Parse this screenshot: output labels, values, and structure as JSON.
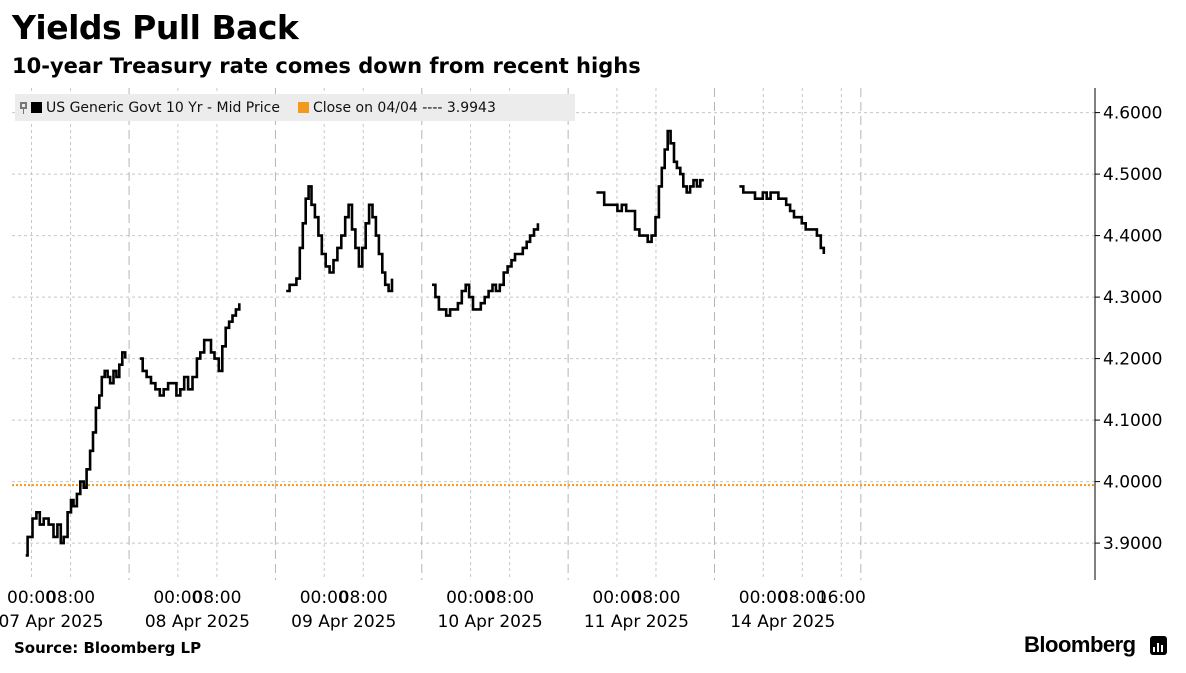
{
  "title": "Yields Pull Back",
  "subtitle": "10-year Treasury rate comes down from recent highs",
  "source": "Source: Bloomberg LP",
  "brand": "Bloomberg",
  "colors": {
    "series": "#000000",
    "reference": "#f39a1e",
    "grid": "#c8c8c8",
    "legend_bg": "#ececec"
  },
  "chart_data": {
    "type": "line",
    "title": "Yields Pull Back",
    "subtitle": "10-year Treasury rate comes down from recent highs",
    "ylabel": "",
    "xlabel": "",
    "ylim": [
      3.84,
      4.64
    ],
    "yticks": [
      3.9,
      4.0,
      4.1,
      4.2,
      4.3,
      4.4,
      4.5,
      4.6
    ],
    "ytick_labels": [
      "3.9000",
      "4.0000",
      "4.1000",
      "4.2000",
      "4.3000",
      "4.4000",
      "4.5000",
      "4.6000"
    ],
    "grid": true,
    "legend_position": "top-left",
    "legend": [
      {
        "name": "US Generic Govt 10 Yr - Mid Price",
        "color": "#000000"
      },
      {
        "name": "Close on 04/04 ---- 3.9943",
        "color": "#f39a1e"
      }
    ],
    "reference_line": {
      "name": "Close on 04/04",
      "value": 3.9943
    },
    "x_unit": "hours since 06 Apr 2025 20:00",
    "xlim": [
      0,
      222
    ],
    "day_separators": [
      24,
      54,
      84,
      114,
      144,
      174
    ],
    "x_ticks": [
      {
        "x": 4,
        "label": "00:00"
      },
      {
        "x": 12,
        "label": "08:00"
      },
      {
        "x": 34,
        "label": "00:00"
      },
      {
        "x": 42,
        "label": "08:00"
      },
      {
        "x": 64,
        "label": "00:00"
      },
      {
        "x": 72,
        "label": "08:00"
      },
      {
        "x": 94,
        "label": "00:00"
      },
      {
        "x": 102,
        "label": "08:00"
      },
      {
        "x": 124,
        "label": "00:00"
      },
      {
        "x": 132,
        "label": "08:00"
      },
      {
        "x": 154,
        "label": "00:00"
      },
      {
        "x": 162,
        "label": "08:00"
      },
      {
        "x": 170,
        "label": "16:00"
      }
    ],
    "date_labels": [
      {
        "x": 8,
        "label": "07 Apr 2025"
      },
      {
        "x": 38,
        "label": "08 Apr 2025"
      },
      {
        "x": 68,
        "label": "09 Apr 2025"
      },
      {
        "x": 98,
        "label": "10 Apr 2025"
      },
      {
        "x": 128,
        "label": "11 Apr 2025"
      },
      {
        "x": 158,
        "label": "14 Apr 2025"
      }
    ],
    "series": [
      {
        "name": "US Generic Govt 10 Yr - Mid Price",
        "segments": [
          [
            [
              2.8,
              3.88
            ],
            [
              3.2,
              3.91
            ],
            [
              4.2,
              3.94
            ],
            [
              5.0,
              3.95
            ],
            [
              5.7,
              3.93
            ],
            [
              6.5,
              3.94
            ],
            [
              7.5,
              3.93
            ],
            [
              8.5,
              3.91
            ],
            [
              9.3,
              3.93
            ],
            [
              10.0,
              3.9
            ],
            [
              10.6,
              3.91
            ],
            [
              11.4,
              3.95
            ],
            [
              12.1,
              3.97
            ],
            [
              12.6,
              3.96
            ],
            [
              13.3,
              3.98
            ],
            [
              14.0,
              4.0
            ],
            [
              14.7,
              3.99
            ],
            [
              15.3,
              4.02
            ],
            [
              16.0,
              4.05
            ],
            [
              16.6,
              4.08
            ],
            [
              17.2,
              4.12
            ],
            [
              17.9,
              4.14
            ],
            [
              18.4,
              4.17
            ],
            [
              19.0,
              4.18
            ],
            [
              19.6,
              4.17
            ],
            [
              20.1,
              4.16
            ],
            [
              20.8,
              4.18
            ],
            [
              21.4,
              4.17
            ],
            [
              22.0,
              4.19
            ],
            [
              22.6,
              4.21
            ],
            [
              23.2,
              4.2
            ]
          ],
          [
            [
              26.2,
              4.2
            ],
            [
              26.8,
              4.18
            ],
            [
              27.6,
              4.17
            ],
            [
              28.5,
              4.16
            ],
            [
              29.4,
              4.15
            ],
            [
              30.3,
              4.14
            ],
            [
              31.1,
              4.15
            ],
            [
              32.0,
              4.16
            ],
            [
              32.9,
              4.16
            ],
            [
              33.7,
              4.14
            ],
            [
              34.5,
              4.15
            ],
            [
              35.3,
              4.17
            ],
            [
              36.1,
              4.15
            ],
            [
              37.0,
              4.17
            ],
            [
              37.9,
              4.2
            ],
            [
              38.6,
              4.21
            ],
            [
              39.4,
              4.23
            ],
            [
              40.1,
              4.23
            ],
            [
              40.8,
              4.21
            ],
            [
              41.5,
              4.2
            ],
            [
              42.4,
              4.18
            ],
            [
              43.1,
              4.22
            ],
            [
              43.8,
              4.25
            ],
            [
              44.5,
              4.26
            ],
            [
              45.2,
              4.27
            ],
            [
              45.9,
              4.28
            ],
            [
              46.6,
              4.29
            ]
          ],
          [
            [
              56.2,
              4.31
            ],
            [
              56.9,
              4.32
            ],
            [
              57.6,
              4.32
            ],
            [
              58.3,
              4.33
            ],
            [
              59.0,
              4.38
            ],
            [
              59.6,
              4.42
            ],
            [
              60.2,
              4.46
            ],
            [
              60.8,
              4.48
            ],
            [
              61.4,
              4.45
            ],
            [
              62.1,
              4.43
            ],
            [
              62.8,
              4.4
            ],
            [
              63.5,
              4.37
            ],
            [
              64.3,
              4.35
            ],
            [
              65.1,
              4.34
            ],
            [
              65.9,
              4.36
            ],
            [
              66.7,
              4.38
            ],
            [
              67.5,
              4.4
            ],
            [
              68.3,
              4.43
            ],
            [
              69.0,
              4.45
            ],
            [
              69.7,
              4.41
            ],
            [
              70.4,
              4.38
            ],
            [
              71.1,
              4.35
            ],
            [
              71.8,
              4.38
            ],
            [
              72.5,
              4.42
            ],
            [
              73.2,
              4.45
            ],
            [
              73.9,
              4.43
            ],
            [
              74.6,
              4.4
            ],
            [
              75.2,
              4.37
            ],
            [
              75.9,
              4.34
            ],
            [
              76.5,
              4.32
            ],
            [
              77.2,
              4.31
            ],
            [
              77.9,
              4.33
            ]
          ],
          [
            [
              86.1,
              4.32
            ],
            [
              86.8,
              4.3
            ],
            [
              87.5,
              4.28
            ],
            [
              88.3,
              4.28
            ],
            [
              89.0,
              4.27
            ],
            [
              89.8,
              4.28
            ],
            [
              90.6,
              4.28
            ],
            [
              91.4,
              4.29
            ],
            [
              92.2,
              4.31
            ],
            [
              93.0,
              4.32
            ],
            [
              93.7,
              4.3
            ],
            [
              94.5,
              4.28
            ],
            [
              95.3,
              4.28
            ],
            [
              96.1,
              4.29
            ],
            [
              96.9,
              4.3
            ],
            [
              97.7,
              4.31
            ],
            [
              98.5,
              4.32
            ],
            [
              99.2,
              4.31
            ],
            [
              100.0,
              4.32
            ],
            [
              100.8,
              4.34
            ],
            [
              101.6,
              4.35
            ],
            [
              102.4,
              4.36
            ],
            [
              103.1,
              4.37
            ],
            [
              103.9,
              4.37
            ],
            [
              104.7,
              4.38
            ],
            [
              105.5,
              4.39
            ],
            [
              106.2,
              4.4
            ],
            [
              107.0,
              4.41
            ],
            [
              107.8,
              4.42
            ]
          ],
          [
            [
              119.8,
              4.47
            ],
            [
              120.6,
              4.47
            ],
            [
              121.4,
              4.45
            ],
            [
              122.3,
              4.45
            ],
            [
              123.2,
              4.45
            ],
            [
              124.1,
              4.44
            ],
            [
              125.0,
              4.45
            ],
            [
              125.9,
              4.44
            ],
            [
              126.8,
              4.44
            ],
            [
              127.7,
              4.41
            ],
            [
              128.6,
              4.4
            ],
            [
              129.5,
              4.4
            ],
            [
              130.3,
              4.39
            ],
            [
              131.1,
              4.4
            ],
            [
              131.9,
              4.43
            ],
            [
              132.6,
              4.48
            ],
            [
              133.2,
              4.51
            ],
            [
              133.8,
              4.54
            ],
            [
              134.4,
              4.57
            ],
            [
              135.0,
              4.55
            ],
            [
              135.7,
              4.52
            ],
            [
              136.3,
              4.51
            ],
            [
              137.0,
              4.5
            ],
            [
              137.6,
              4.48
            ],
            [
              138.3,
              4.47
            ],
            [
              139.0,
              4.48
            ],
            [
              139.7,
              4.49
            ],
            [
              140.4,
              4.48
            ],
            [
              141.1,
              4.49
            ],
            [
              141.8,
              4.49
            ]
          ],
          [
            [
              149.1,
              4.48
            ],
            [
              149.9,
              4.47
            ],
            [
              150.7,
              4.47
            ],
            [
              151.5,
              4.47
            ],
            [
              152.3,
              4.46
            ],
            [
              153.1,
              4.46
            ],
            [
              153.9,
              4.47
            ],
            [
              154.7,
              4.46
            ],
            [
              155.5,
              4.47
            ],
            [
              156.3,
              4.47
            ],
            [
              157.1,
              4.46
            ],
            [
              157.9,
              4.46
            ],
            [
              158.7,
              4.45
            ],
            [
              159.5,
              4.44
            ],
            [
              160.3,
              4.43
            ],
            [
              161.1,
              4.43
            ],
            [
              161.9,
              4.42
            ],
            [
              162.7,
              4.41
            ],
            [
              163.5,
              4.41
            ],
            [
              164.3,
              4.41
            ],
            [
              165.0,
              4.4
            ],
            [
              165.8,
              4.38
            ],
            [
              166.4,
              4.37
            ]
          ]
        ]
      }
    ]
  }
}
